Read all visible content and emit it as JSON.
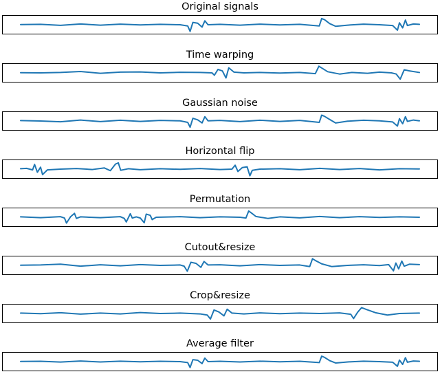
{
  "figure": {
    "line_color": "#1f77b4",
    "frame_color": "#000000"
  },
  "chart_data": [
    {
      "type": "line",
      "title": "Original signals",
      "xlabel": "",
      "ylabel": "",
      "grid": false,
      "ylim": [
        -2.2,
        2.2
      ],
      "x": [
        0,
        0.05,
        0.1,
        0.15,
        0.2,
        0.25,
        0.3,
        0.35,
        0.4,
        0.419,
        0.425,
        0.432,
        0.444,
        0.455,
        0.462,
        0.47,
        0.5,
        0.55,
        0.6,
        0.65,
        0.7,
        0.749,
        0.755,
        0.762,
        0.775,
        0.79,
        0.82,
        0.86,
        0.9,
        0.933,
        0.945,
        0.95,
        0.958,
        0.965,
        0.97,
        0.985,
        1.0
      ],
      "y": [
        0.05,
        0.1,
        -0.15,
        0.2,
        -0.1,
        0.15,
        -0.05,
        0.1,
        0.0,
        -0.3,
        -1.7,
        0.6,
        0.4,
        -0.6,
        1.0,
        0.0,
        0.1,
        -0.1,
        0.15,
        -0.05,
        0.1,
        -0.3,
        1.6,
        1.3,
        0.3,
        -0.4,
        -0.1,
        0.15,
        0.0,
        -0.2,
        -1.4,
        0.5,
        -0.8,
        1.2,
        -0.2,
        0.2,
        0.1
      ]
    },
    {
      "type": "line",
      "title": "Time warping",
      "xlabel": "",
      "ylabel": "",
      "grid": false,
      "ylim": [
        -2.2,
        2.2
      ],
      "x": [
        0,
        0.05,
        0.1,
        0.15,
        0.2,
        0.25,
        0.3,
        0.35,
        0.4,
        0.45,
        0.48,
        0.486,
        0.495,
        0.506,
        0.515,
        0.522,
        0.535,
        0.56,
        0.6,
        0.65,
        0.7,
        0.739,
        0.748,
        0.756,
        0.77,
        0.8,
        0.83,
        0.87,
        0.9,
        0.93,
        0.942,
        0.952,
        0.962,
        0.975,
        1.0
      ],
      "y": [
        0.05,
        0.0,
        0.1,
        0.35,
        -0.1,
        0.2,
        0.25,
        0.0,
        0.15,
        0.1,
        0.0,
        -0.6,
        0.9,
        0.5,
        -1.3,
        1.3,
        0.2,
        0.0,
        0.1,
        -0.05,
        0.1,
        -0.2,
        1.7,
        1.2,
        0.3,
        -0.3,
        0.1,
        -0.1,
        0.2,
        0.0,
        -0.3,
        -1.6,
        0.8,
        0.5,
        0.1
      ]
    },
    {
      "type": "line",
      "title": "Gaussian noise",
      "xlabel": "",
      "ylabel": "",
      "grid": false,
      "ylim": [
        -2.2,
        2.2
      ],
      "x": [
        0,
        0.05,
        0.1,
        0.15,
        0.2,
        0.25,
        0.3,
        0.35,
        0.4,
        0.419,
        0.425,
        0.432,
        0.444,
        0.455,
        0.462,
        0.47,
        0.5,
        0.55,
        0.6,
        0.65,
        0.7,
        0.749,
        0.755,
        0.762,
        0.775,
        0.79,
        0.82,
        0.86,
        0.9,
        0.933,
        0.945,
        0.95,
        0.958,
        0.965,
        0.97,
        0.985,
        1.0
      ],
      "y": [
        0.1,
        0.0,
        -0.2,
        0.25,
        -0.15,
        0.2,
        -0.1,
        0.15,
        0.05,
        -0.35,
        -1.6,
        0.7,
        0.3,
        -0.5,
        1.1,
        0.05,
        0.15,
        -0.15,
        0.2,
        -0.1,
        0.15,
        -0.35,
        1.5,
        1.2,
        0.4,
        -0.5,
        -0.05,
        0.2,
        0.05,
        -0.25,
        -1.3,
        0.6,
        -0.7,
        1.1,
        -0.1,
        0.25,
        0.05
      ]
    },
    {
      "type": "line",
      "title": "Horizontal flip",
      "xlabel": "",
      "ylabel": "",
      "grid": false,
      "ylim": [
        -2.2,
        2.2
      ],
      "x": [
        0,
        0.015,
        0.03,
        0.035,
        0.042,
        0.05,
        0.055,
        0.067,
        0.1,
        0.14,
        0.18,
        0.21,
        0.225,
        0.238,
        0.245,
        0.251,
        0.27,
        0.3,
        0.35,
        0.4,
        0.45,
        0.5,
        0.53,
        0.538,
        0.545,
        0.556,
        0.568,
        0.575,
        0.581,
        0.6,
        0.65,
        0.7,
        0.75,
        0.8,
        0.85,
        0.9,
        0.95,
        1.0
      ],
      "y": [
        0.1,
        0.2,
        -0.2,
        1.2,
        -0.8,
        0.5,
        -1.4,
        -0.2,
        0.0,
        0.15,
        -0.1,
        0.3,
        -0.4,
        1.3,
        1.6,
        -0.3,
        0.1,
        -0.15,
        0.1,
        -0.05,
        0.15,
        -0.1,
        0.0,
        1.0,
        -0.6,
        0.4,
        0.6,
        -1.7,
        -0.3,
        0.0,
        0.1,
        -0.15,
        0.2,
        -0.1,
        0.15,
        -0.2,
        0.1,
        0.05
      ]
    },
    {
      "type": "line",
      "title": "Permutation",
      "xlabel": "",
      "ylabel": "",
      "grid": false,
      "ylim": [
        -2.2,
        2.2
      ],
      "x": [
        0,
        0.05,
        0.1,
        0.11,
        0.115,
        0.125,
        0.135,
        0.14,
        0.15,
        0.2,
        0.25,
        0.26,
        0.265,
        0.275,
        0.28,
        0.29,
        0.3,
        0.31,
        0.315,
        0.325,
        0.33,
        0.34,
        0.4,
        0.45,
        0.5,
        0.55,
        0.565,
        0.572,
        0.58,
        0.59,
        0.62,
        0.65,
        0.7,
        0.75,
        0.8,
        0.85,
        0.9,
        0.95,
        1.0
      ],
      "y": [
        0.1,
        -0.1,
        0.15,
        -0.2,
        -1.5,
        0.1,
        1.0,
        -0.3,
        0.1,
        -0.1,
        0.15,
        -0.3,
        -1.2,
        0.9,
        -0.2,
        0.1,
        -0.2,
        -1.4,
        0.8,
        0.5,
        -0.6,
        0.0,
        0.15,
        -0.1,
        0.1,
        0.0,
        -0.2,
        1.6,
        1.0,
        0.2,
        -0.3,
        0.1,
        -0.15,
        0.2,
        -0.1,
        0.15,
        -0.05,
        0.1,
        0.0
      ]
    },
    {
      "type": "line",
      "title": "Cutout&resize",
      "xlabel": "",
      "ylabel": "",
      "grid": false,
      "ylim": [
        -2.2,
        2.2
      ],
      "x": [
        0,
        0.05,
        0.1,
        0.15,
        0.2,
        0.25,
        0.3,
        0.35,
        0.4,
        0.41,
        0.418,
        0.427,
        0.44,
        0.452,
        0.46,
        0.47,
        0.5,
        0.55,
        0.6,
        0.65,
        0.7,
        0.725,
        0.732,
        0.74,
        0.755,
        0.78,
        0.82,
        0.86,
        0.9,
        0.923,
        0.935,
        0.941,
        0.948,
        0.956,
        0.962,
        0.975,
        1.0
      ],
      "y": [
        0.05,
        0.1,
        0.3,
        -0.2,
        0.15,
        -0.1,
        0.2,
        0.0,
        0.1,
        -0.2,
        -1.5,
        0.8,
        0.5,
        -0.5,
        1.0,
        0.1,
        0.15,
        -0.1,
        0.2,
        0.0,
        0.1,
        -0.3,
        1.7,
        1.2,
        0.4,
        -0.3,
        0.0,
        0.15,
        -0.05,
        0.2,
        -1.4,
        0.6,
        -0.9,
        1.1,
        -0.2,
        0.3,
        0.2
      ]
    },
    {
      "type": "line",
      "title": "Crop&resize",
      "xlabel": "",
      "ylabel": "",
      "grid": false,
      "ylim": [
        -2.2,
        2.2
      ],
      "x": [
        0,
        0.05,
        0.1,
        0.15,
        0.2,
        0.25,
        0.3,
        0.35,
        0.4,
        0.45,
        0.468,
        0.476,
        0.485,
        0.497,
        0.51,
        0.518,
        0.53,
        0.56,
        0.6,
        0.65,
        0.7,
        0.75,
        0.8,
        0.828,
        0.835,
        0.845,
        0.855,
        0.868,
        0.89,
        0.92,
        0.95,
        1.0
      ],
      "y": [
        0.1,
        -0.05,
        0.2,
        -0.15,
        0.1,
        -0.1,
        0.25,
        0.0,
        0.1,
        -0.1,
        -0.4,
        -1.4,
        0.9,
        0.4,
        -0.6,
        1.1,
        0.1,
        -0.1,
        0.15,
        -0.05,
        0.1,
        0.0,
        0.15,
        -0.2,
        -1.3,
        0.3,
        1.5,
        1.0,
        0.2,
        -0.4,
        0.0,
        0.1
      ]
    },
    {
      "type": "line",
      "title": "Average filter",
      "xlabel": "",
      "ylabel": "",
      "grid": false,
      "ylim": [
        -2.2,
        2.2
      ],
      "x": [
        0,
        0.05,
        0.1,
        0.15,
        0.2,
        0.25,
        0.3,
        0.35,
        0.4,
        0.419,
        0.425,
        0.432,
        0.444,
        0.455,
        0.462,
        0.47,
        0.5,
        0.55,
        0.6,
        0.65,
        0.7,
        0.749,
        0.755,
        0.762,
        0.775,
        0.79,
        0.82,
        0.86,
        0.9,
        0.933,
        0.945,
        0.95,
        0.958,
        0.965,
        0.97,
        0.985,
        1.0
      ],
      "y": [
        0.05,
        0.08,
        -0.1,
        0.15,
        -0.08,
        0.12,
        -0.04,
        0.08,
        0.0,
        -0.25,
        -1.5,
        0.5,
        0.35,
        -0.5,
        0.9,
        0.0,
        0.08,
        -0.08,
        0.12,
        -0.04,
        0.08,
        -0.25,
        1.4,
        1.1,
        0.25,
        -0.35,
        -0.08,
        0.12,
        0.0,
        -0.15,
        -1.2,
        0.4,
        -0.7,
        1.0,
        -0.15,
        0.15,
        0.08
      ]
    }
  ]
}
